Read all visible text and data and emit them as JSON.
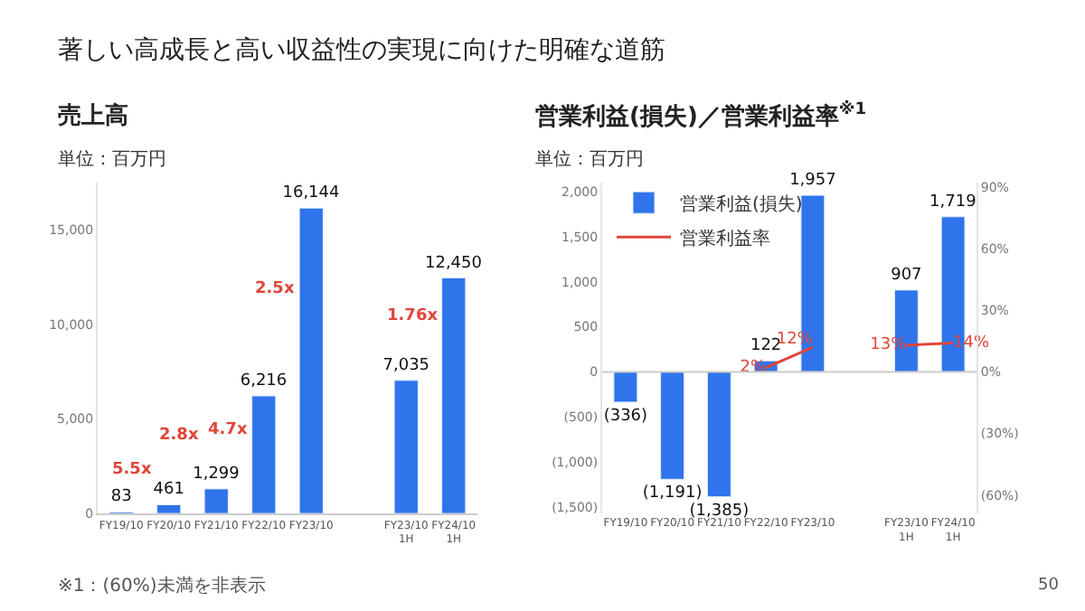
{
  "chart_data": [
    {
      "type": "bar",
      "title": "売上高",
      "categories": [
        "FY19/10",
        "FY20/10",
        "FY21/10",
        "FY22/10",
        "FY23/10",
        null,
        "FY23/10\n1H",
        "FY24/10\n1H"
      ],
      "series": [
        {
          "color": "#2f74eb",
          "values": [
            83,
            461,
            1299,
            6216,
            16144,
            null,
            7035,
            12450
          ],
          "value_labels": [
            "83",
            "461",
            "1,299",
            "6,216",
            "16,144",
            null,
            "7,035",
            "12,450"
          ]
        }
      ],
      "ylim": [
        0,
        17500
      ],
      "yticks": [
        0,
        {
          "value": 5000,
          "label": "5,000"
        },
        {
          "value": 10000,
          "label": "10,000"
        },
        {
          "value": 15000,
          "label": "15,000"
        }
      ],
      "grid": false,
      "legend": false,
      "annotations": [
        "著しい高成長と高い収益性の実現に向けた明確な道筋",
        "単位：百万円",
        "※1：(60%)未満を非表示",
        "5.5x",
        "2.8x",
        "4.7x",
        "2.5x",
        "1.76x"
      ]
    },
    {
      "type": "bar",
      "title": "営業利益(損失)／営業利益率$^{※1}$",
      "categories": [
        "FY19/10",
        "FY20/10",
        "FY21/10",
        "FY22/10",
        "FY23/10",
        null,
        "FY23/10\n1H",
        "FY24/10\n1H"
      ],
      "series": [
        {
          "name": "営業利益(損失)",
          "color": "#2f74eb",
          "values": [
            -336,
            -1191,
            -1385,
            122,
            1957,
            null,
            907,
            1719
          ],
          "value_labels": [
            "(336)",
            "(1,191)",
            "(1,385)",
            "122",
            "1,957",
            null,
            "907",
            "1,719"
          ]
        },
        {
          "name": "営業利益率",
          "type": "line",
          "axis": "y2",
          "color": "#e0463a",
          "values": [
            null,
            null,
            null,
            2,
            12,
            null,
            13,
            14
          ],
          "value_labels": [
            null,
            null,
            null,
            "2%",
            "12%",
            null,
            "13%",
            "14%"
          ]
        }
      ],
      "ylim": [
        -1570,
        2100
      ],
      "yticks": [
        {
          "value": -1500,
          "label": "(1,500)"
        },
        {
          "value": -1000,
          "label": "(1,000)"
        },
        {
          "value": -500,
          "label": "(500)"
        },
        0,
        {
          "value": 500,
          "label": "500"
        },
        {
          "value": 1000,
          "label": "1,000"
        },
        {
          "value": 1500,
          "label": "1,500"
        },
        {
          "value": 2000,
          "label": "2,000"
        }
      ],
      "y2lim": [
        -69,
        92.3
      ],
      "y2ticks": [
        {
          "value": -60,
          "label": "(60%)"
        },
        {
          "value": -30,
          "label": "(30%)"
        },
        {
          "value": 0,
          "label": "0%"
        },
        {
          "value": 30,
          "label": "30%"
        },
        {
          "value": 60,
          "label": "60%"
        },
        {
          "value": 90,
          "label": "90%"
        }
      ],
      "ref_lines": [
        {
          "axis": "y",
          "value": 0,
          "color": "#cccccc"
        }
      ],
      "grid": false,
      "legend": "top left",
      "line_style": "solid",
      "marker": "none",
      "annotations": [
        "単位：百万円",
        "50"
      ]
    }
  ]
}
